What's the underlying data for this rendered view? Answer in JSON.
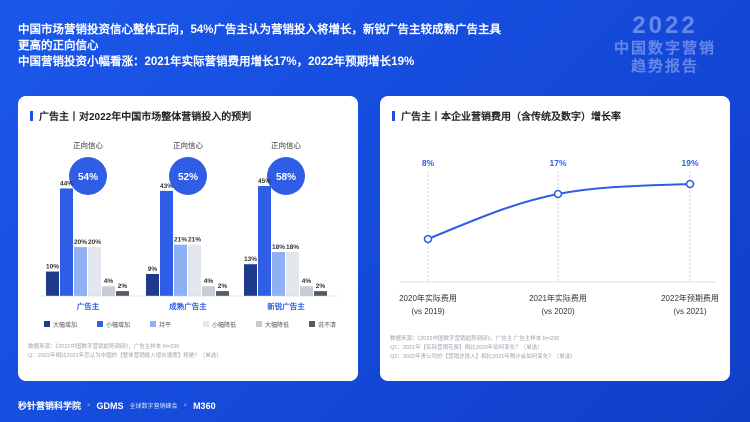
{
  "headline": {
    "line1": "中国市场营销投资信心整体正向，54%广告主认为营销投入将增长，新锐广告主较成熟广告主具",
    "line2": "更高的正向信心",
    "line3": "中国营销投资小幅看涨：2021年实际营销费用增长17%，2022年预期增长19%"
  },
  "brand": {
    "year": "2022",
    "title1": "中国数字营销",
    "title2": "趋势报告"
  },
  "footer": {
    "logo1": "秒针营销科学院",
    "x1": "×",
    "logo2": "GDMS",
    "logo2_sub": "全球数字营销峰会",
    "x2": "×",
    "logo3": "M360"
  },
  "chart_data": [
    {
      "type": "bar",
      "title": "广告主丨对2022年中国市场整体营销投入的预判",
      "categories": [
        "广告主",
        "成熟广告主",
        "新锐广告主"
      ],
      "badge_label": "正向信心",
      "badges": [
        "54%",
        "52%",
        "58%"
      ],
      "series": [
        {
          "name": "大幅增加",
          "color": "#1e3a8a",
          "values": [
            10,
            9,
            13
          ]
        },
        {
          "name": "小幅增加",
          "color": "#2f5de5",
          "values": [
            44,
            43,
            45
          ]
        },
        {
          "name": "持平",
          "color": "#8fb0f5",
          "values": [
            20,
            21,
            18
          ]
        },
        {
          "name": "小幅降低",
          "color": "#e3e6ec",
          "values": [
            20,
            21,
            18
          ]
        },
        {
          "name": "大幅降低",
          "color": "#c8ccd3",
          "values": [
            4,
            4,
            4
          ]
        },
        {
          "name": "说不清",
          "color": "#555b66",
          "values": [
            2,
            2,
            2
          ]
        }
      ],
      "labels": [
        [
          "10%",
          "44%",
          "20%",
          "20%",
          "4%",
          "2%"
        ],
        [
          "9%",
          "43%",
          "21%",
          "21%",
          "4%",
          "2%"
        ],
        [
          "13%",
          "45%",
          "18%",
          "18%",
          "4%",
          "2%"
        ]
      ],
      "notes": [
        "数据来源：《2022中国数字营销趋势调研》，广告主样本 N=230",
        "Q：2022年相比2021年您认为中国的【整体营销投入增长速度】将是？（单选）"
      ]
    },
    {
      "type": "line",
      "title": "广告主丨本企业营销费用（含传统及数字）增长率",
      "categories": [
        "2020年实际费用",
        "2021年实际费用",
        "2022年预期费用"
      ],
      "sublabels": [
        "(vs 2019)",
        "(vs 2020)",
        "(vs 2021)"
      ],
      "values": [
        8,
        17,
        19
      ],
      "labels": [
        "8%",
        "17%",
        "19%"
      ],
      "ylim": [
        0,
        25
      ],
      "notes": [
        "数据来源：《2022中国数字营销趋势调研》，广告主 广告主样本 N=230",
        "Q1：2021年【实际营销花费】相比2020年如何变化？（单选）",
        "Q2：2022年贵公司的【营销总投入】相比2021年预计会如何变化？（单选）"
      ]
    }
  ]
}
